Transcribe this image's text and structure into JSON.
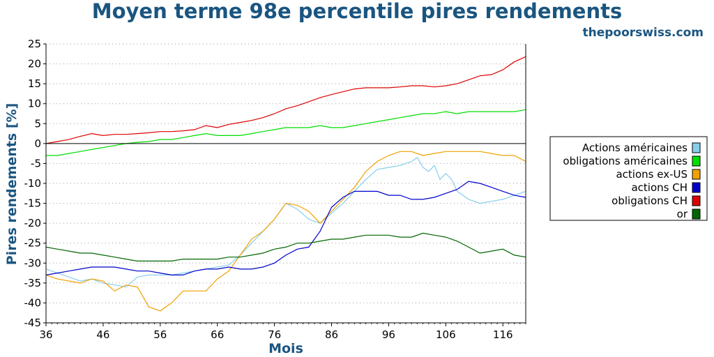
{
  "chart_data": {
    "type": "line",
    "title": "Moyen terme 98e percentile pires rendements",
    "brand": "thepoorswiss.com",
    "xlabel": "Mois",
    "ylabel": "Pires rendements [%]",
    "xlim": [
      36,
      120
    ],
    "ylim": [
      -45,
      25
    ],
    "xticks": [
      36,
      46,
      56,
      66,
      76,
      86,
      96,
      106,
      116
    ],
    "yticks": [
      25,
      20,
      15,
      10,
      5,
      0,
      -5,
      -10,
      -15,
      -20,
      -25,
      -30,
      -35,
      -40,
      -45
    ],
    "grid": true,
    "legend_position": "right",
    "series": [
      {
        "name": "Actions américaines",
        "color": "#87ceeb",
        "points": [
          [
            36,
            -31.5
          ],
          [
            38,
            -32.5
          ],
          [
            40,
            -33.5
          ],
          [
            42,
            -34.5
          ],
          [
            44,
            -34
          ],
          [
            46,
            -35
          ],
          [
            48,
            -35.5
          ],
          [
            50,
            -36
          ],
          [
            52,
            -33.5
          ],
          [
            54,
            -33
          ],
          [
            56,
            -33
          ],
          [
            58,
            -33
          ],
          [
            60,
            -32.5
          ],
          [
            62,
            -32
          ],
          [
            64,
            -31.5
          ],
          [
            66,
            -31
          ],
          [
            68,
            -30.5
          ],
          [
            70,
            -28
          ],
          [
            72,
            -25
          ],
          [
            74,
            -22
          ],
          [
            76,
            -19
          ],
          [
            78,
            -15
          ],
          [
            80,
            -16.5
          ],
          [
            82,
            -19
          ],
          [
            84,
            -20
          ],
          [
            86,
            -17.5
          ],
          [
            88,
            -15
          ],
          [
            90,
            -12
          ],
          [
            92,
            -9
          ],
          [
            94,
            -6.5
          ],
          [
            96,
            -6
          ],
          [
            98,
            -5.5
          ],
          [
            100,
            -4.5
          ],
          [
            101,
            -3.5
          ],
          [
            102,
            -6
          ],
          [
            103,
            -7
          ],
          [
            104,
            -5.5
          ],
          [
            105,
            -9
          ],
          [
            106,
            -7.5
          ],
          [
            107,
            -9
          ],
          [
            108,
            -12
          ],
          [
            110,
            -14
          ],
          [
            112,
            -15
          ],
          [
            114,
            -14.5
          ],
          [
            116,
            -14
          ],
          [
            118,
            -13
          ],
          [
            120,
            -12
          ]
        ]
      },
      {
        "name": "obligations américaines",
        "color": "#00dd00",
        "points": [
          [
            36,
            -3
          ],
          [
            38,
            -3
          ],
          [
            40,
            -2.5
          ],
          [
            42,
            -2
          ],
          [
            44,
            -1.5
          ],
          [
            46,
            -1
          ],
          [
            48,
            -0.5
          ],
          [
            50,
            0
          ],
          [
            52,
            0.3
          ],
          [
            54,
            0.5
          ],
          [
            56,
            1
          ],
          [
            58,
            1
          ],
          [
            60,
            1.5
          ],
          [
            62,
            2
          ],
          [
            64,
            2.5
          ],
          [
            66,
            2
          ],
          [
            68,
            2
          ],
          [
            70,
            2
          ],
          [
            72,
            2.5
          ],
          [
            74,
            3
          ],
          [
            76,
            3.5
          ],
          [
            78,
            4
          ],
          [
            80,
            4
          ],
          [
            82,
            4
          ],
          [
            84,
            4.5
          ],
          [
            86,
            4
          ],
          [
            88,
            4
          ],
          [
            90,
            4.5
          ],
          [
            92,
            5
          ],
          [
            94,
            5.5
          ],
          [
            96,
            6
          ],
          [
            98,
            6.5
          ],
          [
            100,
            7
          ],
          [
            102,
            7.5
          ],
          [
            104,
            7.5
          ],
          [
            106,
            8
          ],
          [
            108,
            7.5
          ],
          [
            110,
            8
          ],
          [
            112,
            8
          ],
          [
            114,
            8
          ],
          [
            116,
            8
          ],
          [
            118,
            8
          ],
          [
            120,
            8.5
          ]
        ]
      },
      {
        "name": "actions ex-US",
        "color": "#f0a000",
        "points": [
          [
            36,
            -33
          ],
          [
            38,
            -34
          ],
          [
            40,
            -34.5
          ],
          [
            42,
            -35
          ],
          [
            44,
            -34
          ],
          [
            46,
            -34.5
          ],
          [
            48,
            -37
          ],
          [
            50,
            -35.5
          ],
          [
            52,
            -36
          ],
          [
            54,
            -41
          ],
          [
            56,
            -42
          ],
          [
            58,
            -40
          ],
          [
            60,
            -37
          ],
          [
            62,
            -37
          ],
          [
            64,
            -37
          ],
          [
            66,
            -34
          ],
          [
            68,
            -32
          ],
          [
            70,
            -28
          ],
          [
            72,
            -24
          ],
          [
            74,
            -22
          ],
          [
            76,
            -19
          ],
          [
            78,
            -15
          ],
          [
            80,
            -15.5
          ],
          [
            82,
            -17
          ],
          [
            84,
            -20
          ],
          [
            86,
            -17
          ],
          [
            88,
            -14
          ],
          [
            90,
            -11
          ],
          [
            92,
            -7
          ],
          [
            94,
            -4.5
          ],
          [
            96,
            -3
          ],
          [
            98,
            -2
          ],
          [
            100,
            -2
          ],
          [
            102,
            -3
          ],
          [
            104,
            -2.5
          ],
          [
            106,
            -2
          ],
          [
            108,
            -2
          ],
          [
            110,
            -2
          ],
          [
            112,
            -2
          ],
          [
            114,
            -2.5
          ],
          [
            116,
            -3
          ],
          [
            118,
            -3
          ],
          [
            120,
            -4.5
          ]
        ]
      },
      {
        "name": "actions CH",
        "color": "#0000cc",
        "points": [
          [
            36,
            -33
          ],
          [
            38,
            -32.5
          ],
          [
            40,
            -32
          ],
          [
            42,
            -31.5
          ],
          [
            44,
            -31
          ],
          [
            46,
            -31
          ],
          [
            48,
            -31
          ],
          [
            50,
            -31.5
          ],
          [
            52,
            -32
          ],
          [
            54,
            -32
          ],
          [
            56,
            -32.5
          ],
          [
            58,
            -33
          ],
          [
            60,
            -33
          ],
          [
            62,
            -32
          ],
          [
            64,
            -31.5
          ],
          [
            66,
            -31.5
          ],
          [
            68,
            -31
          ],
          [
            70,
            -31.5
          ],
          [
            72,
            -31.5
          ],
          [
            74,
            -31
          ],
          [
            76,
            -30
          ],
          [
            78,
            -28
          ],
          [
            80,
            -26.5
          ],
          [
            82,
            -26
          ],
          [
            84,
            -22
          ],
          [
            86,
            -16
          ],
          [
            88,
            -13.5
          ],
          [
            90,
            -12
          ],
          [
            92,
            -12
          ],
          [
            94,
            -12
          ],
          [
            96,
            -13
          ],
          [
            98,
            -13
          ],
          [
            100,
            -14
          ],
          [
            102,
            -14
          ],
          [
            104,
            -13.5
          ],
          [
            106,
            -12.5
          ],
          [
            108,
            -11.5
          ],
          [
            110,
            -9.5
          ],
          [
            112,
            -10
          ],
          [
            114,
            -11
          ],
          [
            116,
            -12
          ],
          [
            118,
            -13
          ],
          [
            120,
            -13.5
          ]
        ]
      },
      {
        "name": "obligations CH",
        "color": "#dd0000",
        "points": [
          [
            36,
            0
          ],
          [
            38,
            0.5
          ],
          [
            40,
            1
          ],
          [
            42,
            1.8
          ],
          [
            44,
            2.5
          ],
          [
            46,
            2
          ],
          [
            48,
            2.3
          ],
          [
            50,
            2.3
          ],
          [
            52,
            2.5
          ],
          [
            54,
            2.7
          ],
          [
            56,
            3
          ],
          [
            58,
            3
          ],
          [
            60,
            3.2
          ],
          [
            62,
            3.5
          ],
          [
            64,
            4.5
          ],
          [
            66,
            4
          ],
          [
            68,
            4.8
          ],
          [
            70,
            5.3
          ],
          [
            72,
            5.8
          ],
          [
            74,
            6.5
          ],
          [
            76,
            7.5
          ],
          [
            78,
            8.7
          ],
          [
            80,
            9.5
          ],
          [
            82,
            10.5
          ],
          [
            84,
            11.5
          ],
          [
            86,
            12.3
          ],
          [
            88,
            13
          ],
          [
            90,
            13.7
          ],
          [
            92,
            14
          ],
          [
            94,
            14
          ],
          [
            96,
            14
          ],
          [
            98,
            14.2
          ],
          [
            100,
            14.5
          ],
          [
            102,
            14.5
          ],
          [
            104,
            14.2
          ],
          [
            106,
            14.5
          ],
          [
            108,
            15
          ],
          [
            110,
            16
          ],
          [
            112,
            17
          ],
          [
            114,
            17.3
          ],
          [
            116,
            18.5
          ],
          [
            118,
            20.5
          ],
          [
            120,
            21.8
          ]
        ]
      },
      {
        "name": "or",
        "color": "#006600",
        "points": [
          [
            36,
            -26
          ],
          [
            38,
            -26.5
          ],
          [
            40,
            -27
          ],
          [
            42,
            -27.5
          ],
          [
            44,
            -27.5
          ],
          [
            46,
            -28
          ],
          [
            48,
            -28.5
          ],
          [
            50,
            -29
          ],
          [
            52,
            -29.5
          ],
          [
            54,
            -29.5
          ],
          [
            56,
            -29.5
          ],
          [
            58,
            -29.5
          ],
          [
            60,
            -29
          ],
          [
            62,
            -29
          ],
          [
            64,
            -29
          ],
          [
            66,
            -29
          ],
          [
            68,
            -28.5
          ],
          [
            70,
            -28.5
          ],
          [
            72,
            -28
          ],
          [
            74,
            -27.5
          ],
          [
            76,
            -26.5
          ],
          [
            78,
            -26
          ],
          [
            80,
            -25
          ],
          [
            82,
            -25
          ],
          [
            84,
            -24.5
          ],
          [
            86,
            -24
          ],
          [
            88,
            -24
          ],
          [
            90,
            -23.5
          ],
          [
            92,
            -23
          ],
          [
            94,
            -23
          ],
          [
            96,
            -23
          ],
          [
            98,
            -23.5
          ],
          [
            100,
            -23.5
          ],
          [
            102,
            -22.5
          ],
          [
            104,
            -23
          ],
          [
            106,
            -23.5
          ],
          [
            108,
            -24.5
          ],
          [
            110,
            -26
          ],
          [
            112,
            -27.5
          ],
          [
            114,
            -27
          ],
          [
            116,
            -26.5
          ],
          [
            118,
            -28
          ],
          [
            120,
            -28.5
          ]
        ]
      }
    ]
  }
}
